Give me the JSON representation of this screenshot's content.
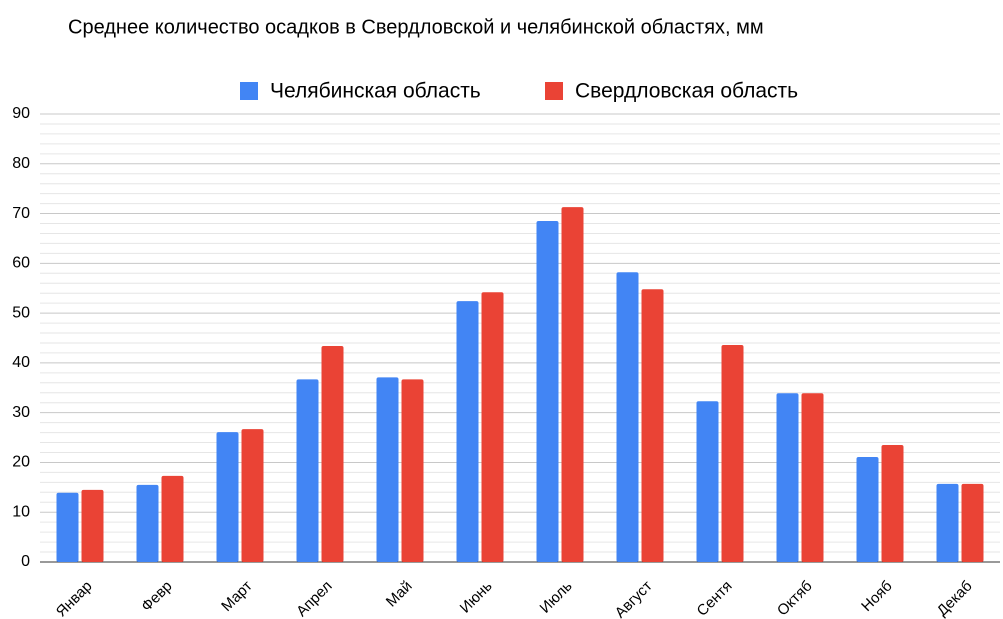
{
  "chart_data": {
    "type": "bar",
    "title": "Среднее количество осадков в Свердловской и челябинской областях, мм",
    "categories": [
      "Январ",
      "Февр",
      "Март",
      "Апрел",
      "Май",
      "Июнь",
      "Июль",
      "Август",
      "Сентя",
      "Октяб",
      "Нояб",
      "Декаб"
    ],
    "series": [
      {
        "name": "Челябинская область",
        "color": "#4285f4",
        "values": [
          13.9,
          15.5,
          26.1,
          36.7,
          37.1,
          52.4,
          68.5,
          58.2,
          32.3,
          33.9,
          21.1,
          15.7
        ]
      },
      {
        "name": "Свердловская область",
        "color": "#ea4335",
        "values": [
          14.5,
          17.3,
          26.7,
          43.4,
          36.7,
          54.2,
          71.3,
          54.8,
          43.6,
          33.9,
          23.5,
          15.7
        ]
      }
    ],
    "ylim": [
      0,
      90
    ],
    "yticks": [
      0,
      10,
      20,
      30,
      40,
      50,
      60,
      70,
      80,
      90
    ],
    "grid": true,
    "minor_grid_divisions": 5,
    "legend": "top"
  }
}
